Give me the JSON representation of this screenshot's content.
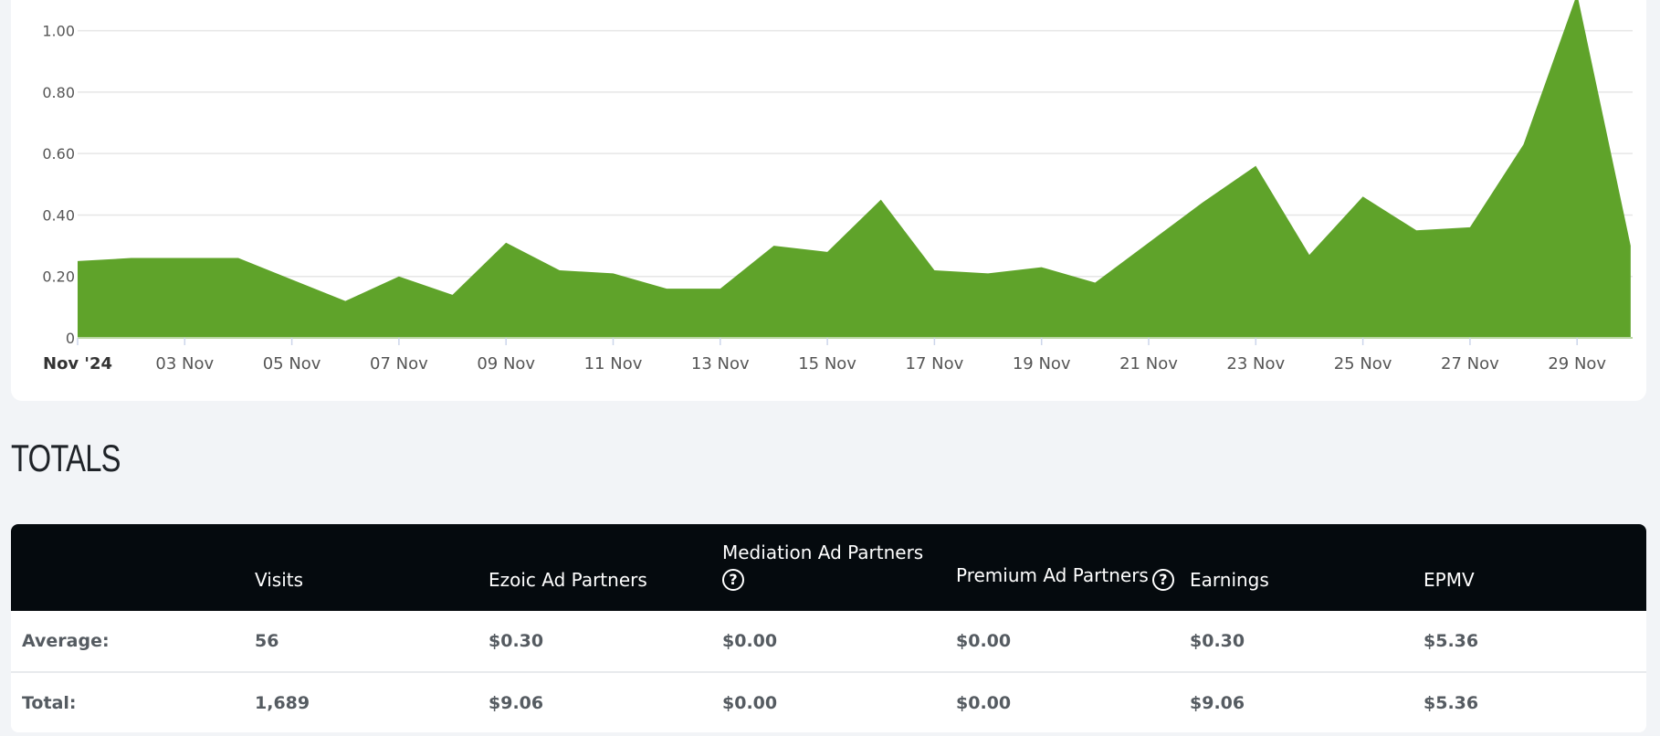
{
  "chart_data": {
    "type": "area",
    "color": "#5fa32a",
    "x_ticks": [
      "Nov '24",
      "03 Nov",
      "05 Nov",
      "07 Nov",
      "09 Nov",
      "11 Nov",
      "13 Nov",
      "15 Nov",
      "17 Nov",
      "19 Nov",
      "21 Nov",
      "23 Nov",
      "25 Nov",
      "27 Nov",
      "29 Nov"
    ],
    "y_ticks": [
      "0",
      "0.20",
      "0.40",
      "0.60",
      "0.80",
      "1.00"
    ],
    "ylim": [
      0,
      1.1
    ],
    "x": [
      "Nov 1",
      "Nov 2",
      "Nov 3",
      "Nov 4",
      "Nov 5",
      "Nov 6",
      "Nov 7",
      "Nov 8",
      "Nov 9",
      "Nov 10",
      "Nov 11",
      "Nov 12",
      "Nov 13",
      "Nov 14",
      "Nov 15",
      "Nov 16",
      "Nov 17",
      "Nov 18",
      "Nov 19",
      "Nov 20",
      "Nov 21",
      "Nov 22",
      "Nov 23",
      "Nov 24",
      "Nov 25",
      "Nov 26",
      "Nov 27",
      "Nov 28",
      "Nov 29",
      "Nov 30"
    ],
    "values": [
      0.25,
      0.26,
      0.26,
      0.26,
      0.19,
      0.12,
      0.2,
      0.14,
      0.31,
      0.22,
      0.21,
      0.16,
      0.16,
      0.3,
      0.28,
      0.45,
      0.22,
      0.21,
      0.23,
      0.18,
      0.31,
      0.44,
      0.56,
      0.27,
      0.46,
      0.35,
      0.36,
      0.63,
      1.12,
      0.3
    ],
    "grid": true
  },
  "totals": {
    "title": "TOTALS",
    "headers": [
      "",
      "Visits",
      "Ezoic Ad Partners",
      "Mediation Ad Partners",
      "Premium Ad Partners",
      "Earnings",
      "EPMV"
    ],
    "help_icon": "question-circle-icon",
    "rows": [
      {
        "label": "Average:",
        "values": [
          "56",
          "$0.30",
          "$0.00",
          "$0.00",
          "$0.30",
          "$5.36"
        ]
      },
      {
        "label": "Total:",
        "values": [
          "1,689",
          "$9.06",
          "$0.00",
          "$0.00",
          "$9.06",
          "$5.36"
        ]
      }
    ]
  }
}
